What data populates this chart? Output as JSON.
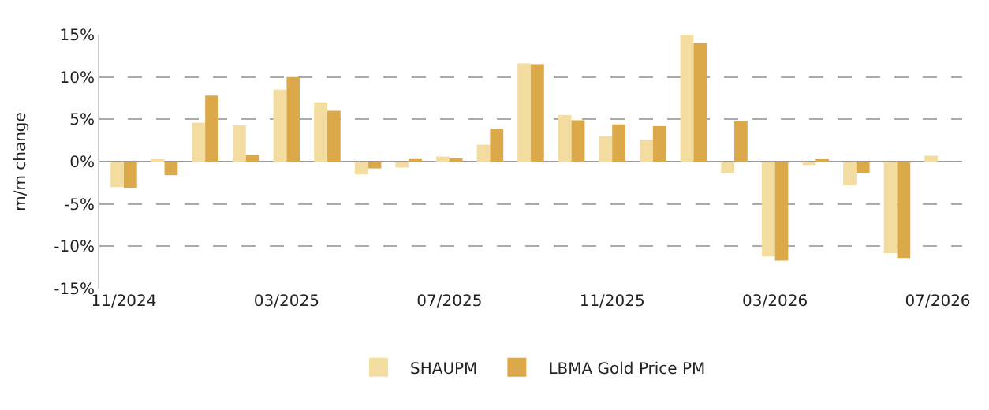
{
  "chart_data": {
    "type": "bar",
    "ylabel": "m/m change",
    "categories": [
      "11/2024",
      null,
      null,
      null,
      "03/2025",
      null,
      null,
      null,
      "07/2025",
      null,
      null,
      null,
      "11/2025",
      null,
      null,
      null,
      "03/2026",
      null,
      null,
      null,
      "07/2026"
    ],
    "series": [
      {
        "name": "SHAUPM",
        "color": "#f3dca0",
        "values": [
          -3.0,
          0.1,
          4.6,
          4.3,
          8.5,
          7.0,
          -1.5,
          -0.7,
          0.6,
          2.0,
          11.6,
          5.5,
          3.0,
          2.6,
          15.0,
          -1.4,
          -11.2,
          -0.4,
          -2.8,
          -10.8,
          0.7
        ]
      },
      {
        "name": "LBMA Gold Price PM",
        "color": "#dba84a",
        "values": [
          -3.1,
          -1.6,
          7.8,
          0.8,
          10.0,
          6.0,
          -0.8,
          0.3,
          0.4,
          3.9,
          11.5,
          4.9,
          4.4,
          4.2,
          14.0,
          4.8,
          -11.7,
          0.1,
          -1.4,
          -11.4,
          null
        ]
      }
    ],
    "ylim": [
      -15,
      15
    ],
    "yticks": [
      {
        "value": -15,
        "label": "-15%"
      },
      {
        "value": -10,
        "label": "-10%"
      },
      {
        "value": -5,
        "label": "-5%"
      },
      {
        "value": 0,
        "label": "0%"
      },
      {
        "value": 5,
        "label": "5%"
      },
      {
        "value": 10,
        "label": "10%"
      },
      {
        "value": 15,
        "label": "15%"
      }
    ],
    "grid": "y",
    "legend": "bottom"
  }
}
